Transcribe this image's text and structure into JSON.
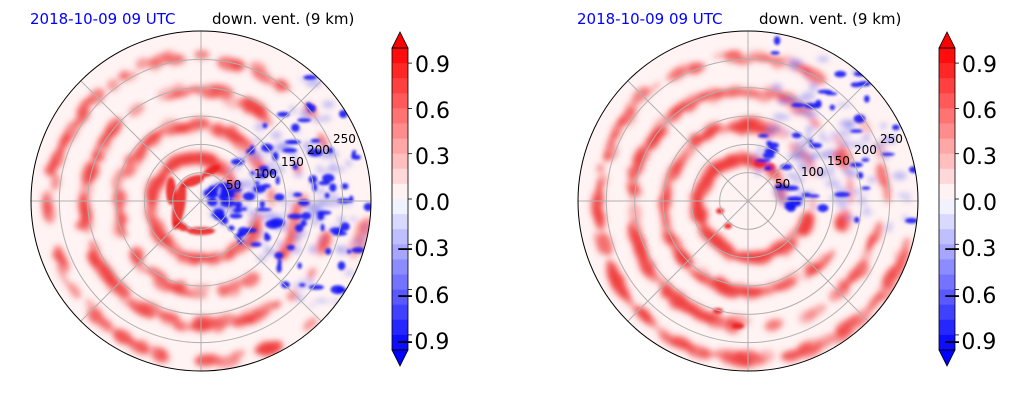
{
  "chart_data": [
    {
      "type": "heatmap",
      "subtype": "polar",
      "title_left": "2018-10-09 09 UTC",
      "title_right": "down. vent. (9 km)",
      "title_left_color": "#0000ff",
      "radial_ticks": [
        "50",
        "100",
        "150",
        "200",
        "250"
      ],
      "radial_tick_values": [
        50,
        100,
        150,
        200,
        250
      ],
      "rmax": 300,
      "angular_grid_step_deg": 45,
      "grid": true,
      "colorbar": {
        "ticks": [
          "0.9",
          "0.6",
          "0.3",
          "0.0",
          "−0.3",
          "−0.6",
          "−0.9"
        ],
        "tick_values": [
          0.9,
          0.6,
          0.3,
          0.0,
          -0.3,
          -0.6,
          -0.9
        ],
        "vmin": -1.0,
        "vmax": 1.0,
        "extend": "both",
        "cmap": "bwr",
        "low_color": "#0000ff",
        "mid_color": "#ffffff",
        "high_color": "#ff0000"
      }
    },
    {
      "type": "heatmap",
      "subtype": "polar",
      "title_left": "2018-10-09 09 UTC",
      "title_right": "down. vent. (9 km)",
      "title_left_color": "#0000ff",
      "radial_ticks": [
        "50",
        "100",
        "150",
        "200",
        "250"
      ],
      "radial_tick_values": [
        50,
        100,
        150,
        200,
        250
      ],
      "rmax": 300,
      "angular_grid_step_deg": 45,
      "grid": true,
      "colorbar": {
        "ticks": [
          "0.9",
          "0.6",
          "0.3",
          "0.0",
          "−0.3",
          "−0.6",
          "−0.9"
        ],
        "tick_values": [
          0.9,
          0.6,
          0.3,
          0.0,
          -0.3,
          -0.6,
          -0.9
        ],
        "vmin": -1.0,
        "vmax": 1.0,
        "extend": "both",
        "cmap": "bwr",
        "low_color": "#0000ff",
        "mid_color": "#ffffff",
        "high_color": "#ff0000"
      }
    }
  ]
}
